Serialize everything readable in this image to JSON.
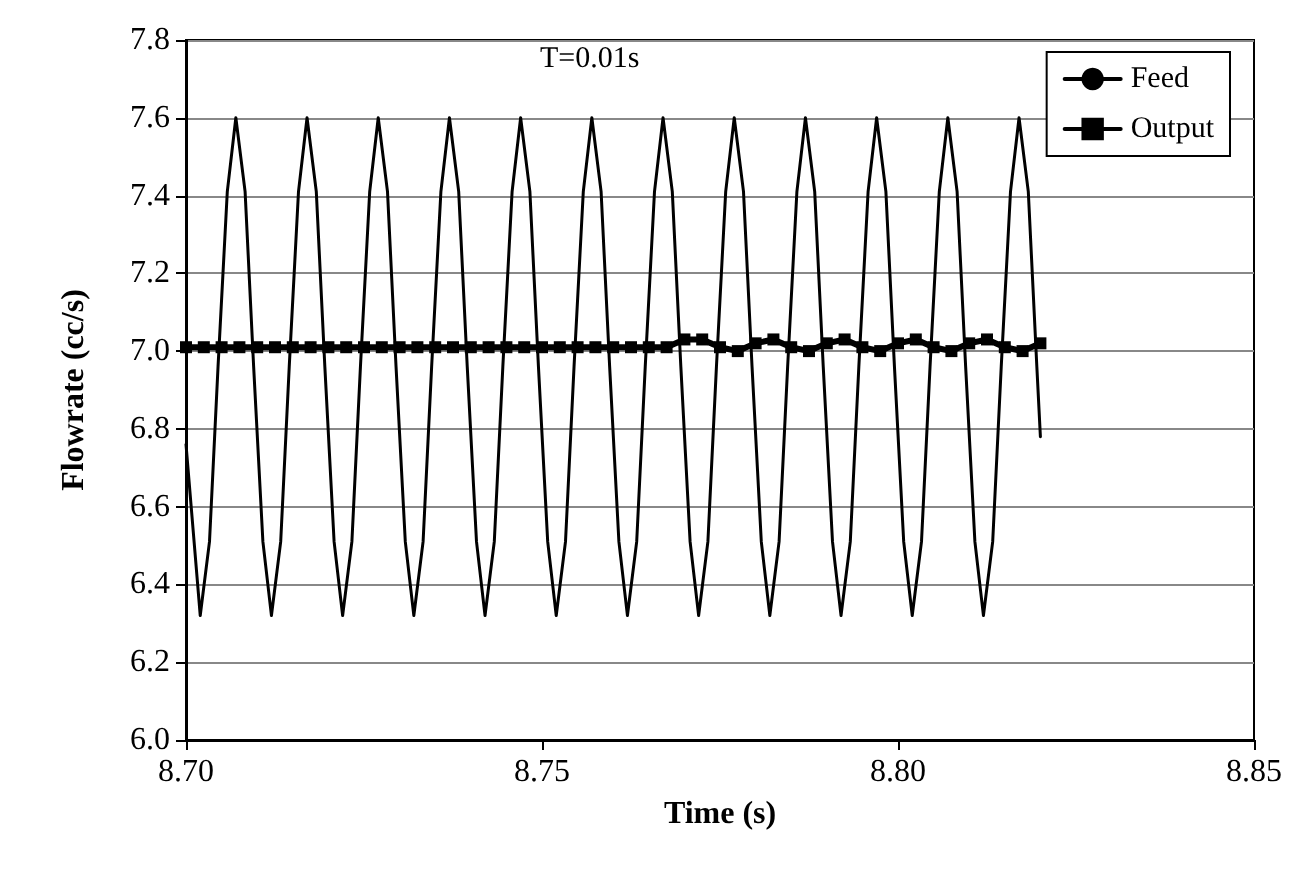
{
  "chart_data": {
    "type": "line",
    "xlabel": "Time (s)",
    "ylabel": "Flowrate (cc/s)",
    "annotations": [
      "T=0.01s"
    ],
    "xlim": [
      8.7,
      8.85
    ],
    "xticks": [
      {
        "value": 8.7,
        "label": "8.70"
      },
      {
        "value": 8.75,
        "label": "8.75"
      },
      {
        "value": 8.8,
        "label": "8.80"
      },
      {
        "value": 8.85,
        "label": "8.85"
      }
    ],
    "ylim": [
      6.0,
      7.8
    ],
    "yticks": [
      {
        "value": 6.0,
        "label": "6.0"
      },
      {
        "value": 6.2,
        "label": "6.2"
      },
      {
        "value": 6.4,
        "label": "6.4"
      },
      {
        "value": 6.6,
        "label": "6.6"
      },
      {
        "value": 6.8,
        "label": "6.8"
      },
      {
        "value": 7.0,
        "label": "7.0"
      },
      {
        "value": 7.2,
        "label": "7.2"
      },
      {
        "value": 7.4,
        "label": "7.4"
      },
      {
        "value": 7.6,
        "label": "7.6"
      },
      {
        "value": 7.8,
        "label": "7.8"
      }
    ],
    "grid": "y",
    "legend": "top right",
    "series": [
      {
        "name": "Feed",
        "color": "#000000",
        "marker": "none",
        "x": [
          8.7,
          8.702,
          8.7033,
          8.7045,
          8.7058,
          8.707,
          8.7083,
          8.7095,
          8.7108,
          8.712,
          8.7133,
          8.7145,
          8.7158,
          8.717,
          8.7183,
          8.7195,
          8.7208,
          8.722,
          8.7233,
          8.7245,
          8.7258,
          8.727,
          8.7283,
          8.7295,
          8.7308,
          8.732,
          8.7333,
          8.7345,
          8.7358,
          8.737,
          8.7383,
          8.7395,
          8.7408,
          8.742,
          8.7433,
          8.7445,
          8.7458,
          8.747,
          8.7483,
          8.7495,
          8.7508,
          8.752,
          8.7533,
          8.7545,
          8.7558,
          8.757,
          8.7583,
          8.7595,
          8.7608,
          8.762,
          8.7633,
          8.7645,
          8.7658,
          8.767,
          8.7683,
          8.7695,
          8.7708,
          8.772,
          8.7733,
          8.7745,
          8.7758,
          8.777,
          8.7783,
          8.7795,
          8.7808,
          8.782,
          8.7833,
          8.7845,
          8.7858,
          8.787,
          8.7883,
          8.7895,
          8.7908,
          8.792,
          8.7933,
          8.7945,
          8.7958,
          8.797,
          8.7983,
          8.7995,
          8.8008,
          8.802,
          8.8033,
          8.8045,
          8.8058,
          8.807,
          8.8083,
          8.8095,
          8.8108,
          8.812,
          8.8133,
          8.8145,
          8.8158,
          8.817,
          8.8183,
          8.8195,
          8.82
        ],
        "values": [
          6.76,
          6.32,
          6.51,
          6.96,
          7.41,
          7.6,
          7.41,
          6.96,
          6.51,
          6.32,
          6.51,
          6.96,
          7.41,
          7.6,
          7.41,
          6.96,
          6.51,
          6.32,
          6.51,
          6.96,
          7.41,
          7.6,
          7.41,
          6.96,
          6.51,
          6.32,
          6.51,
          6.96,
          7.41,
          7.6,
          7.41,
          6.96,
          6.51,
          6.32,
          6.51,
          6.96,
          7.41,
          7.6,
          7.41,
          6.96,
          6.51,
          6.32,
          6.51,
          6.96,
          7.41,
          7.6,
          7.41,
          6.96,
          6.51,
          6.32,
          6.51,
          6.96,
          7.41,
          7.6,
          7.41,
          6.96,
          6.51,
          6.32,
          6.51,
          6.96,
          7.41,
          7.6,
          7.41,
          6.96,
          6.51,
          6.32,
          6.51,
          6.96,
          7.41,
          7.6,
          7.41,
          6.96,
          6.51,
          6.32,
          6.51,
          6.96,
          7.41,
          7.6,
          7.41,
          6.96,
          6.51,
          6.32,
          6.51,
          6.96,
          7.41,
          7.6,
          7.41,
          6.96,
          6.51,
          6.32,
          6.51,
          6.96,
          7.41,
          7.6,
          7.41,
          6.96,
          6.78
        ]
      },
      {
        "name": "Output",
        "color": "#000000",
        "marker": "square",
        "x": [
          8.7,
          8.7025,
          8.705,
          8.7075,
          8.71,
          8.7125,
          8.715,
          8.7175,
          8.72,
          8.7225,
          8.725,
          8.7275,
          8.73,
          8.7325,
          8.735,
          8.7375,
          8.74,
          8.7425,
          8.745,
          8.7475,
          8.75,
          8.7525,
          8.755,
          8.7575,
          8.76,
          8.7625,
          8.765,
          8.7675,
          8.77,
          8.7725,
          8.775,
          8.7775,
          8.78,
          8.7825,
          8.785,
          8.7875,
          8.79,
          8.7925,
          8.795,
          8.7975,
          8.8,
          8.8025,
          8.805,
          8.8075,
          8.81,
          8.8125,
          8.815,
          8.8175,
          8.82
        ],
        "values": [
          7.01,
          7.01,
          7.01,
          7.01,
          7.01,
          7.01,
          7.01,
          7.01,
          7.01,
          7.01,
          7.01,
          7.01,
          7.01,
          7.01,
          7.01,
          7.01,
          7.01,
          7.01,
          7.01,
          7.01,
          7.01,
          7.01,
          7.01,
          7.01,
          7.01,
          7.01,
          7.01,
          7.01,
          7.03,
          7.03,
          7.01,
          7.0,
          7.02,
          7.03,
          7.01,
          7.0,
          7.02,
          7.03,
          7.01,
          7.0,
          7.02,
          7.03,
          7.01,
          7.0,
          7.02,
          7.03,
          7.01,
          7.0,
          7.02
        ]
      }
    ]
  }
}
